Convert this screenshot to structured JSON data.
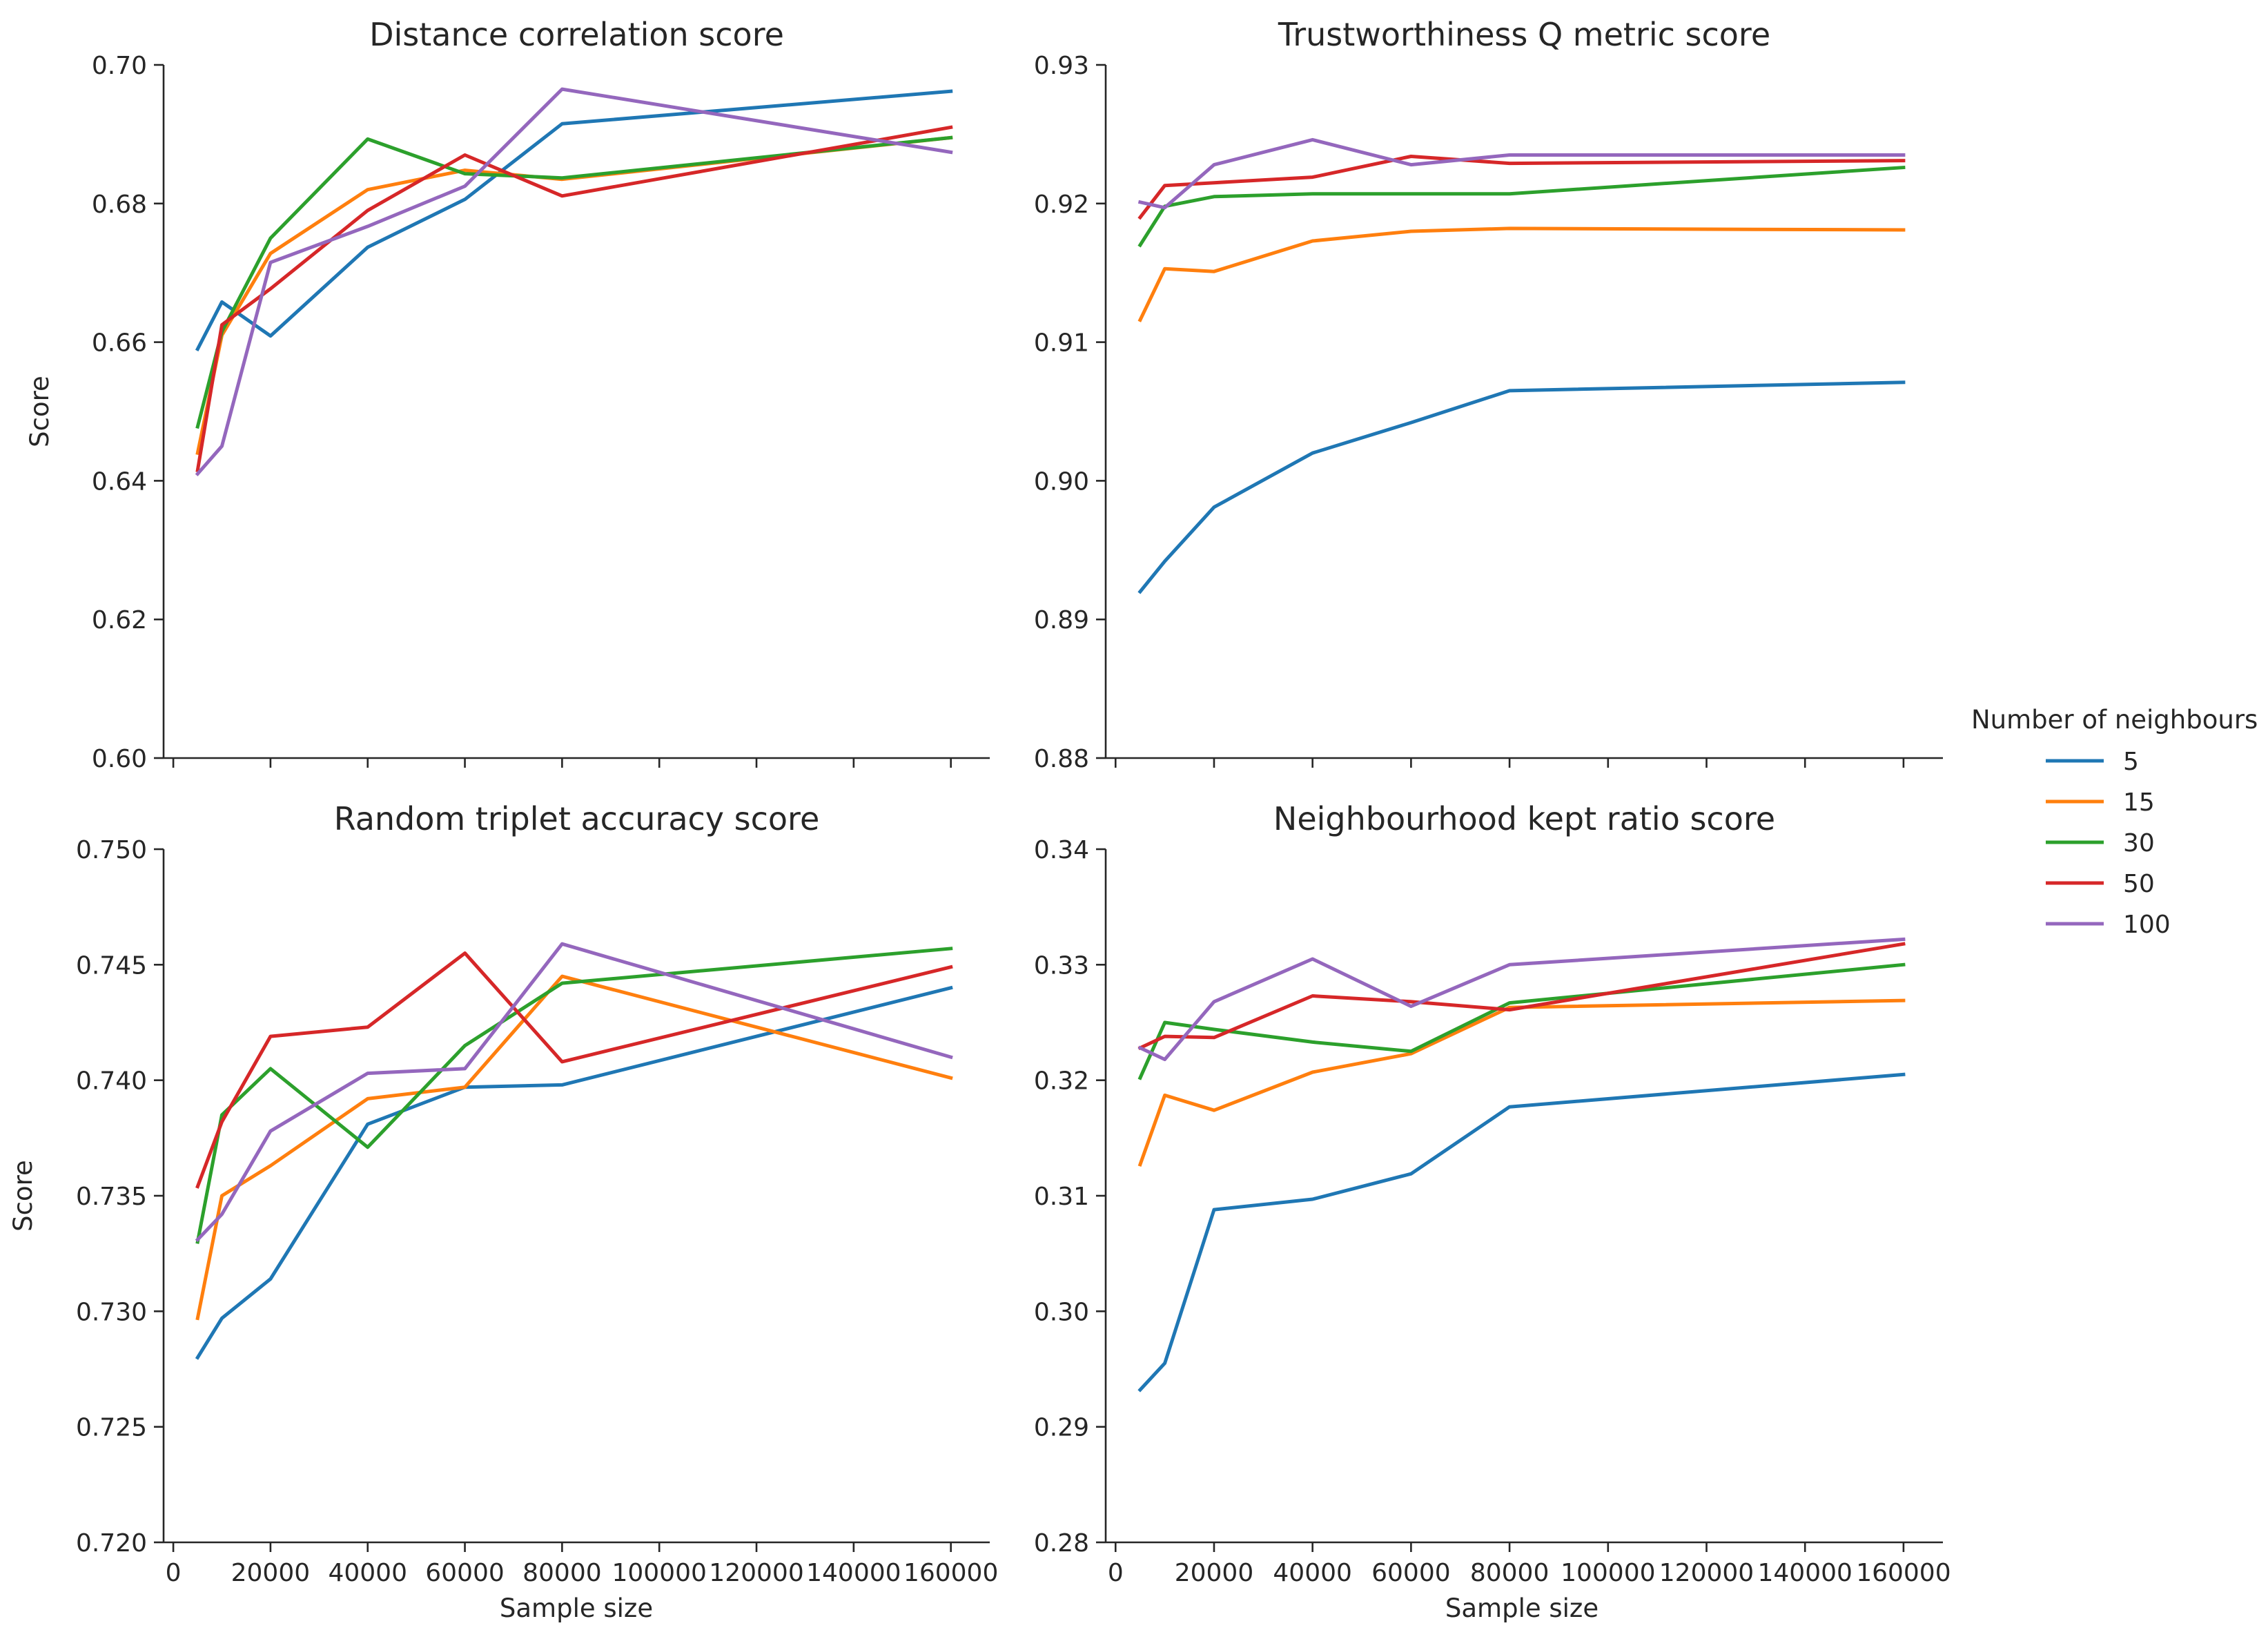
{
  "legend": {
    "title": "Number of neighbours",
    "placement": "right"
  },
  "chart_data": [
    {
      "type": "line",
      "title": "Distance correlation score",
      "xlabel": "",
      "ylabel": "Score",
      "xlim": [
        -2000,
        168000
      ],
      "ylim": [
        0.6,
        0.7
      ],
      "xticks": [
        0,
        20000,
        40000,
        60000,
        80000,
        100000,
        120000,
        140000,
        160000
      ],
      "xtick_labels": [],
      "yticks": [
        0.6,
        0.62,
        0.64,
        0.66,
        0.68,
        0.7
      ],
      "ytick_labels": [
        "0.60",
        "0.62",
        "0.64",
        "0.66",
        "0.68",
        "0.70"
      ],
      "x": [
        5000,
        10000,
        20000,
        40000,
        60000,
        80000,
        160000
      ],
      "series": [
        {
          "name": "5",
          "color": "#1f77b4",
          "values": [
            0.659,
            0.6658,
            0.6609,
            0.6737,
            0.6806,
            0.6915,
            0.6962
          ]
        },
        {
          "name": "15",
          "color": "#ff7f0e",
          "values": [
            0.644,
            0.661,
            0.6728,
            0.682,
            0.6848,
            0.6835,
            0.6895
          ]
        },
        {
          "name": "30",
          "color": "#2ca02c",
          "values": [
            0.6478,
            0.6615,
            0.675,
            0.6893,
            0.6843,
            0.6837,
            0.6895
          ]
        },
        {
          "name": "50",
          "color": "#d62728",
          "values": [
            0.6415,
            0.6625,
            0.6677,
            0.679,
            0.687,
            0.6811,
            0.691
          ]
        },
        {
          "name": "100",
          "color": "#9467bd",
          "values": [
            0.641,
            0.645,
            0.6715,
            0.6767,
            0.6825,
            0.6965,
            0.6874
          ]
        }
      ]
    },
    {
      "type": "line",
      "title": "Trustworthiness Q metric score",
      "xlabel": "",
      "ylabel": "",
      "xlim": [
        -2000,
        168000
      ],
      "ylim": [
        0.88,
        0.93
      ],
      "xticks": [
        0,
        20000,
        40000,
        60000,
        80000,
        100000,
        120000,
        140000,
        160000
      ],
      "xtick_labels": [],
      "yticks": [
        0.88,
        0.89,
        0.9,
        0.91,
        0.92,
        0.93
      ],
      "ytick_labels": [
        "0.88",
        "0.89",
        "0.90",
        "0.91",
        "0.92",
        "0.93"
      ],
      "x": [
        5000,
        10000,
        20000,
        40000,
        60000,
        80000,
        160000
      ],
      "series": [
        {
          "name": "5",
          "color": "#1f77b4",
          "values": [
            0.892,
            0.8942,
            0.8981,
            0.902,
            0.9042,
            0.9065,
            0.9071
          ]
        },
        {
          "name": "15",
          "color": "#ff7f0e",
          "values": [
            0.9116,
            0.9153,
            0.9151,
            0.9173,
            0.918,
            0.9182,
            0.9181
          ]
        },
        {
          "name": "30",
          "color": "#2ca02c",
          "values": [
            0.917,
            0.9198,
            0.9205,
            0.9207,
            0.9207,
            0.9207,
            0.9226
          ]
        },
        {
          "name": "50",
          "color": "#d62728",
          "values": [
            0.919,
            0.9213,
            0.9215,
            0.9219,
            0.9234,
            0.9229,
            0.9231
          ]
        },
        {
          "name": "100",
          "color": "#9467bd",
          "values": [
            0.9201,
            0.9197,
            0.9228,
            0.9246,
            0.9228,
            0.9235,
            0.9235
          ]
        }
      ]
    },
    {
      "type": "line",
      "title": "Random triplet accuracy score",
      "xlabel": "Sample size",
      "ylabel": "Score",
      "xlim": [
        -2000,
        168000
      ],
      "ylim": [
        0.72,
        0.75
      ],
      "xticks": [
        0,
        20000,
        40000,
        60000,
        80000,
        100000,
        120000,
        140000,
        160000
      ],
      "xtick_labels": [
        "0",
        "20000",
        "40000",
        "60000",
        "80000",
        "100000",
        "120000",
        "140000",
        "160000"
      ],
      "yticks": [
        0.72,
        0.725,
        0.73,
        0.735,
        0.74,
        0.745,
        0.75
      ],
      "ytick_labels": [
        "0.720",
        "0.725",
        "0.730",
        "0.735",
        "0.740",
        "0.745",
        "0.750"
      ],
      "x": [
        5000,
        10000,
        20000,
        40000,
        60000,
        80000,
        160000
      ],
      "series": [
        {
          "name": "5",
          "color": "#1f77b4",
          "values": [
            0.728,
            0.7297,
            0.7314,
            0.7381,
            0.7397,
            0.7398,
            0.744
          ]
        },
        {
          "name": "15",
          "color": "#ff7f0e",
          "values": [
            0.7297,
            0.735,
            0.7363,
            0.7392,
            0.7397,
            0.7445,
            0.7401
          ]
        },
        {
          "name": "30",
          "color": "#2ca02c",
          "values": [
            0.733,
            0.7385,
            0.7405,
            0.7371,
            0.7415,
            0.7442,
            0.7457
          ]
        },
        {
          "name": "50",
          "color": "#d62728",
          "values": [
            0.7354,
            0.7382,
            0.7419,
            0.7423,
            0.7455,
            0.7408,
            0.7449
          ]
        },
        {
          "name": "100",
          "color": "#9467bd",
          "values": [
            0.7331,
            0.7342,
            0.7378,
            0.7403,
            0.7405,
            0.7459,
            0.741
          ]
        }
      ]
    },
    {
      "type": "line",
      "title": "Neighbourhood kept ratio score",
      "xlabel": "Sample size",
      "ylabel": "",
      "xlim": [
        -2000,
        168000
      ],
      "ylim": [
        0.28,
        0.34
      ],
      "xticks": [
        0,
        20000,
        40000,
        60000,
        80000,
        100000,
        120000,
        140000,
        160000
      ],
      "xtick_labels": [
        "0",
        "20000",
        "40000",
        "60000",
        "80000",
        "100000",
        "120000",
        "140000",
        "160000"
      ],
      "yticks": [
        0.28,
        0.29,
        0.3,
        0.31,
        0.32,
        0.33,
        0.34
      ],
      "ytick_labels": [
        "0.28",
        "0.29",
        "0.30",
        "0.31",
        "0.32",
        "0.33",
        "0.34"
      ],
      "x": [
        5000,
        10000,
        20000,
        40000,
        60000,
        80000,
        160000
      ],
      "series": [
        {
          "name": "5",
          "color": "#1f77b4",
          "values": [
            0.2932,
            0.2955,
            0.3088,
            0.3097,
            0.3119,
            0.3177,
            0.3205
          ]
        },
        {
          "name": "15",
          "color": "#ff7f0e",
          "values": [
            0.3127,
            0.3187,
            0.3174,
            0.3207,
            0.3223,
            0.3263,
            0.3269
          ]
        },
        {
          "name": "30",
          "color": "#2ca02c",
          "values": [
            0.3202,
            0.325,
            0.3244,
            0.3233,
            0.3225,
            0.3267,
            0.33
          ]
        },
        {
          "name": "50",
          "color": "#d62728",
          "values": [
            0.3228,
            0.3238,
            0.3237,
            0.3273,
            0.3268,
            0.3261,
            0.3318
          ]
        },
        {
          "name": "100",
          "color": "#9467bd",
          "values": [
            0.3228,
            0.3218,
            0.3268,
            0.3305,
            0.3264,
            0.33,
            0.3322
          ]
        }
      ]
    }
  ]
}
